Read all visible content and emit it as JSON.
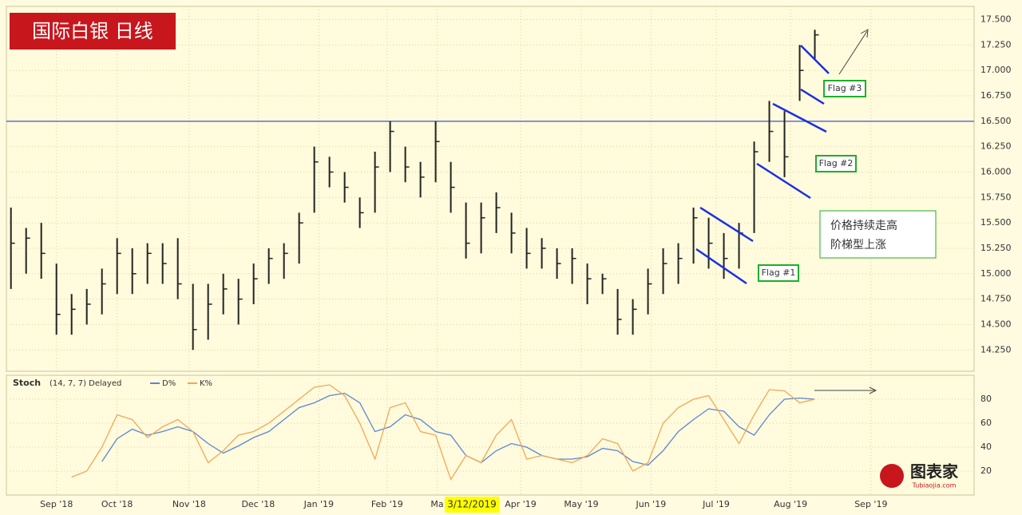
{
  "chart_data": {
    "type": "ohlc",
    "title": "国际白银 日线",
    "categories": [
      null,
      null,
      null,
      null,
      null,
      null,
      null,
      null,
      null,
      null,
      null,
      null,
      null,
      null,
      null,
      null,
      null,
      null,
      null,
      null,
      null,
      null,
      null,
      null,
      null,
      null,
      null,
      null,
      null,
      null,
      null,
      null,
      null,
      null,
      null,
      null,
      null,
      null,
      null,
      null,
      null,
      null,
      null,
      null,
      null,
      null,
      null,
      null,
      null,
      null,
      null,
      null,
      null,
      null
    ],
    "highs": [
      15.65,
      15.45,
      15.5,
      15.1,
      14.8,
      14.85,
      15.05,
      15.35,
      15.25,
      15.3,
      15.3,
      15.35,
      14.9,
      14.9,
      15.0,
      14.95,
      15.1,
      15.25,
      15.3,
      15.6,
      16.25,
      16.15,
      16.0,
      15.75,
      16.2,
      16.5,
      16.25,
      16.1,
      16.5,
      16.1,
      15.7,
      15.7,
      15.8,
      15.6,
      15.45,
      15.35,
      15.25,
      15.25,
      15.1,
      15.0,
      14.85,
      14.75,
      15.05,
      15.25,
      15.3,
      15.65,
      15.55,
      15.4,
      15.5,
      16.3,
      16.7,
      16.6,
      17.25,
      17.4
    ],
    "lows": [
      14.85,
      15.0,
      14.95,
      14.4,
      14.4,
      14.5,
      14.6,
      14.8,
      14.8,
      14.9,
      14.9,
      14.75,
      14.25,
      14.35,
      14.6,
      14.5,
      14.7,
      14.9,
      14.95,
      15.1,
      15.6,
      15.85,
      15.7,
      15.45,
      15.6,
      16.0,
      15.9,
      15.75,
      15.9,
      15.6,
      15.15,
      15.2,
      15.4,
      15.2,
      15.05,
      15.05,
      14.95,
      14.9,
      14.7,
      14.8,
      14.4,
      14.4,
      14.6,
      14.8,
      14.9,
      15.1,
      15.05,
      14.95,
      15.05,
      15.4,
      16.1,
      15.95,
      16.7,
      17.1
    ],
    "closes": [
      15.3,
      15.35,
      15.2,
      14.6,
      14.65,
      14.7,
      14.9,
      15.2,
      15.0,
      15.2,
      15.1,
      14.9,
      14.45,
      14.7,
      14.85,
      14.75,
      14.95,
      15.15,
      15.2,
      15.5,
      16.1,
      16.0,
      15.85,
      15.6,
      16.05,
      16.4,
      16.05,
      15.95,
      16.3,
      15.85,
      15.3,
      15.55,
      15.65,
      15.4,
      15.2,
      15.25,
      15.1,
      15.15,
      14.95,
      14.95,
      14.55,
      14.65,
      14.9,
      15.1,
      15.15,
      15.55,
      15.3,
      15.15,
      15.4,
      16.2,
      16.4,
      16.15,
      17.0,
      17.35
    ],
    "color": "#222222",
    "resistance": 16.5,
    "resistance_color": "#5b6fd6",
    "xlim": [
      -0.3,
      63.5
    ],
    "xticks": [
      {
        "value": 3,
        "label": "Sep '18"
      },
      {
        "value": 7,
        "label": "Oct '18"
      },
      {
        "value": 11.75,
        "label": "Nov '18"
      },
      {
        "value": 16.3,
        "label": "Dec '18"
      },
      {
        "value": 20.3,
        "label": "Jan '19"
      },
      {
        "value": 24.8,
        "label": "Feb '19"
      },
      {
        "value": 28.1,
        "label": "Ma"
      },
      {
        "value": 33.6,
        "label": "Apr '19"
      },
      {
        "value": 37.6,
        "label": "May '19"
      },
      {
        "value": 42.2,
        "label": "Jun '19"
      },
      {
        "value": 46.5,
        "label": "Jul '19"
      },
      {
        "value": 51.4,
        "label": "Aug '19"
      },
      {
        "value": 56.7,
        "label": "Sep '19"
      }
    ],
    "cursor_date": "3/12/2019",
    "ylim": [
      14.04,
      17.63
    ],
    "yticks": [
      {
        "value": 14.25,
        "label": "14.250"
      },
      {
        "value": 14.5,
        "label": "14.500"
      },
      {
        "value": 14.75,
        "label": "14.750"
      },
      {
        "value": 15,
        "label": "15.000"
      },
      {
        "value": 15.25,
        "label": "15.250"
      },
      {
        "value": 15.5,
        "label": "15.500"
      },
      {
        "value": 15.75,
        "label": "15.750"
      },
      {
        "value": 16,
        "label": "16.000"
      },
      {
        "value": 16.25,
        "label": "16.250"
      },
      {
        "value": 16.5,
        "label": "16.500"
      },
      {
        "value": 16.75,
        "label": "16.750"
      },
      {
        "value": 17,
        "label": "17.000"
      },
      {
        "value": 17.25,
        "label": "17.250"
      },
      {
        "value": 17.5,
        "label": "17.500"
      }
    ],
    "grid": true,
    "annotations": {
      "flag1": "Flag #1",
      "flag2": "Flag #2",
      "flag3": "Flag #3",
      "note_line1": "价格持续走高",
      "note_line2": "阶梯型上涨",
      "watermark": "图表家",
      "watermark_sub": "Tubiaojia.com"
    },
    "stoch": {
      "type": "line",
      "label": "Stoch",
      "params": "(14, 7, 7) Delayed",
      "ylim": [
        0,
        100
      ],
      "yticks": [
        20,
        40,
        60,
        80
      ],
      "series": [
        {
          "name": "D%",
          "color": "#5b86d6",
          "values": [
            null,
            null,
            null,
            null,
            null,
            null,
            28,
            47,
            55,
            50,
            53,
            57,
            53,
            43,
            35,
            41,
            48,
            53,
            63,
            73,
            77,
            83,
            85,
            77,
            53,
            57,
            67,
            63,
            53,
            50,
            33,
            27,
            37,
            43,
            40,
            33,
            30,
            30,
            32,
            39,
            37,
            28,
            25,
            37,
            53,
            63,
            72,
            70,
            57,
            50,
            67,
            80,
            81,
            80
          ]
        },
        {
          "name": "K%",
          "color": "#f0a857",
          "values": [
            null,
            null,
            null,
            null,
            15,
            20,
            40,
            67,
            63,
            48,
            57,
            63,
            53,
            27,
            37,
            50,
            53,
            60,
            70,
            80,
            90,
            92,
            83,
            60,
            30,
            73,
            77,
            53,
            50,
            13,
            33,
            27,
            50,
            63,
            30,
            33,
            30,
            27,
            33,
            47,
            43,
            20,
            27,
            60,
            73,
            80,
            83,
            63,
            43,
            67,
            88,
            87,
            77,
            80
          ]
        }
      ]
    }
  }
}
